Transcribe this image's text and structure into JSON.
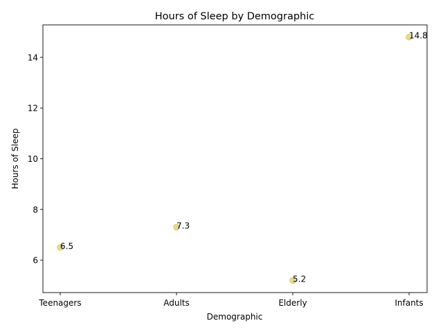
{
  "chart_data": {
    "type": "scatter",
    "title": "Hours of Sleep by Demographic",
    "xlabel": "Demographic",
    "ylabel": "Hours of Sleep",
    "categories": [
      "Teenagers",
      "Adults",
      "Elderly",
      "Infants"
    ],
    "values": [
      6.5,
      7.3,
      5.2,
      14.8
    ],
    "data_labels": [
      "6.5",
      "7.3",
      "5.2",
      "14.8"
    ],
    "ylim": [
      4.72,
      15.28
    ],
    "yticks": [
      6,
      8,
      10,
      12,
      14
    ],
    "ytick_labels": [
      "6",
      "8",
      "10",
      "12",
      "14"
    ],
    "grid": false,
    "marker_color": "#e6d98c",
    "marker_edge_color": "#d4c56a"
  }
}
